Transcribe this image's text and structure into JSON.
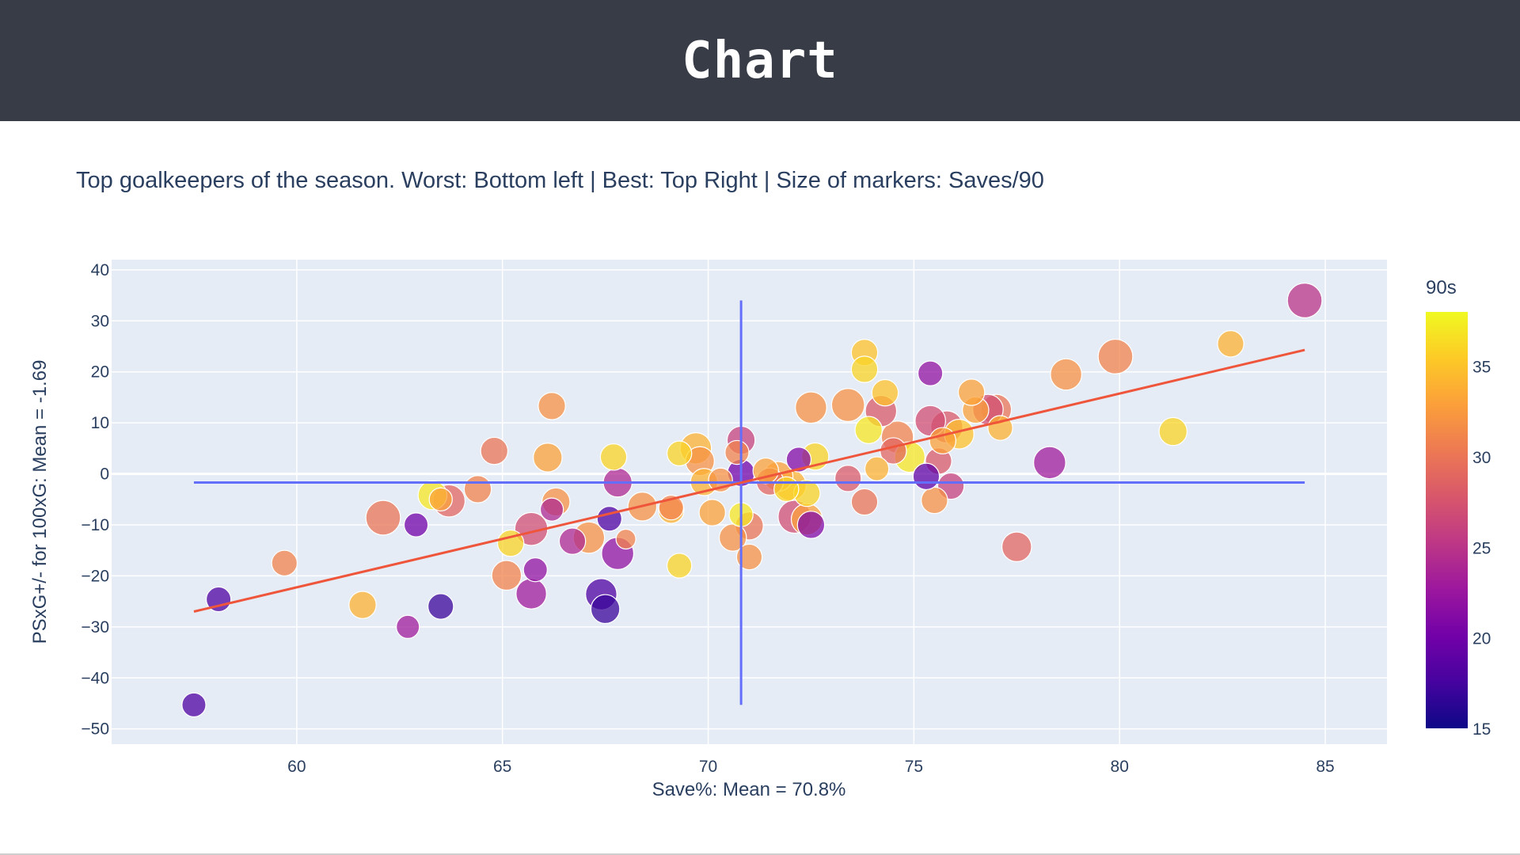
{
  "header": {
    "title": "Chart"
  },
  "chart_data": {
    "type": "scatter",
    "title": "Top goalkeepers of the season. Worst: Bottom left | Best: Top Right | Size of markers: Saves/90",
    "xlabel": "Save%: Mean = 70.8%",
    "ylabel": "PSxG+/- for 100xG: Mean = -1.69",
    "xlim": [
      55.5,
      86.5
    ],
    "ylim": [
      -53,
      42
    ],
    "xticks": [
      60,
      65,
      70,
      75,
      80,
      85
    ],
    "yticks": [
      40,
      30,
      20,
      10,
      0,
      -10,
      -20,
      -30,
      -40,
      -50
    ],
    "grid": true,
    "colorbar": {
      "title": "90s",
      "range": [
        15,
        38
      ],
      "ticks": [
        15,
        20,
        25,
        30,
        35
      ],
      "colorscale": [
        "#0d0887",
        "#46039f",
        "#7201a8",
        "#9c179e",
        "#bd3786",
        "#d8576b",
        "#ed7953",
        "#fb9f3a",
        "#fdca26",
        "#f0f921"
      ]
    },
    "size_encoding": "Saves/90",
    "mean_x": 70.8,
    "mean_y": -1.69,
    "trendline": {
      "x": [
        57.5,
        84.5
      ],
      "y": [
        -27,
        24.3
      ],
      "color": "#ef553b"
    },
    "mean_line_color": "#636efa",
    "points": [
      {
        "x": 84.5,
        "y": 34,
        "c": 25,
        "s": 4.2
      },
      {
        "x": 82.7,
        "y": 25.5,
        "c": 34,
        "s": 3.2
      },
      {
        "x": 81.3,
        "y": 8.3,
        "c": 36,
        "s": 3.4
      },
      {
        "x": 79.9,
        "y": 23,
        "c": 31,
        "s": 4.2
      },
      {
        "x": 78.7,
        "y": 19.5,
        "c": 32,
        "s": 3.8
      },
      {
        "x": 78.3,
        "y": 2.2,
        "c": 23,
        "s": 3.9
      },
      {
        "x": 77.5,
        "y": -14.3,
        "c": 29,
        "s": 3.6
      },
      {
        "x": 77.1,
        "y": 9,
        "c": 34,
        "s": 3.0
      },
      {
        "x": 77,
        "y": 12.6,
        "c": 30,
        "s": 3.7
      },
      {
        "x": 76.8,
        "y": 12.6,
        "c": 27,
        "s": 3.7
      },
      {
        "x": 76.5,
        "y": 12.5,
        "c": 33,
        "s": 3.2
      },
      {
        "x": 76.4,
        "y": 16,
        "c": 33,
        "s": 3.2
      },
      {
        "x": 76.1,
        "y": 7.8,
        "c": 35,
        "s": 3.6
      },
      {
        "x": 75.8,
        "y": 9.2,
        "c": 28,
        "s": 3.9
      },
      {
        "x": 75.9,
        "y": -2.4,
        "c": 26,
        "s": 3.2
      },
      {
        "x": 75.6,
        "y": 2.5,
        "c": 28,
        "s": 3.2
      },
      {
        "x": 75.7,
        "y": 6.5,
        "c": 33,
        "s": 3.2
      },
      {
        "x": 75.5,
        "y": -5.2,
        "c": 32,
        "s": 3.2
      },
      {
        "x": 75.4,
        "y": 19.7,
        "c": 22,
        "s": 3.0
      },
      {
        "x": 75.4,
        "y": 10.4,
        "c": 27,
        "s": 3.7
      },
      {
        "x": 75.3,
        "y": -0.5,
        "c": 19,
        "s": 3.2
      },
      {
        "x": 74.9,
        "y": 3.3,
        "c": 37,
        "s": 3.7
      },
      {
        "x": 74.6,
        "y": 7.2,
        "c": 31,
        "s": 3.9
      },
      {
        "x": 74.5,
        "y": 4.5,
        "c": 29,
        "s": 3.2
      },
      {
        "x": 74.3,
        "y": 15.9,
        "c": 35,
        "s": 3.2
      },
      {
        "x": 74.2,
        "y": 12.3,
        "c": 28,
        "s": 3.8
      },
      {
        "x": 74.1,
        "y": 1,
        "c": 34,
        "s": 2.9
      },
      {
        "x": 73.9,
        "y": 8.6,
        "c": 37,
        "s": 3.3
      },
      {
        "x": 73.8,
        "y": 23.8,
        "c": 35,
        "s": 3.2
      },
      {
        "x": 73.8,
        "y": 20.5,
        "c": 36,
        "s": 3.2
      },
      {
        "x": 73.8,
        "y": -5.5,
        "c": 30,
        "s": 3.2
      },
      {
        "x": 73.4,
        "y": 13.5,
        "c": 32,
        "s": 4.0
      },
      {
        "x": 73.4,
        "y": -0.9,
        "c": 28,
        "s": 3.2
      },
      {
        "x": 72.6,
        "y": 3.4,
        "c": 36,
        "s": 3.3
      },
      {
        "x": 72.5,
        "y": 13,
        "c": 32,
        "s": 3.8
      },
      {
        "x": 72.4,
        "y": -8.9,
        "c": 33,
        "s": 3.8
      },
      {
        "x": 72.4,
        "y": -3.8,
        "c": 36,
        "s": 3.2
      },
      {
        "x": 72.5,
        "y": -10,
        "c": 21,
        "s": 3.3
      },
      {
        "x": 72.2,
        "y": 2.8,
        "c": 21,
        "s": 3.0
      },
      {
        "x": 72.1,
        "y": -8.4,
        "c": 27,
        "s": 4.0
      },
      {
        "x": 72,
        "y": -2.2,
        "c": 34,
        "s": 3.8
      },
      {
        "x": 71.9,
        "y": -3,
        "c": 36,
        "s": 3.0
      },
      {
        "x": 71.7,
        "y": -0.5,
        "c": 33,
        "s": 3.6
      },
      {
        "x": 71.4,
        "y": 0.6,
        "c": 33,
        "s": 3.1
      },
      {
        "x": 71.5,
        "y": -1.5,
        "c": 29,
        "s": 3.3
      },
      {
        "x": 71,
        "y": -16.3,
        "c": 32,
        "s": 3.1
      },
      {
        "x": 71,
        "y": -10.2,
        "c": 30,
        "s": 3.4
      },
      {
        "x": 70.8,
        "y": 6.6,
        "c": 26,
        "s": 3.4
      },
      {
        "x": 70.8,
        "y": -8,
        "c": 37,
        "s": 2.9
      },
      {
        "x": 70.8,
        "y": 0.2,
        "c": 20,
        "s": 3.3
      },
      {
        "x": 70.6,
        "y": -12.5,
        "c": 32,
        "s": 3.3
      },
      {
        "x": 70.7,
        "y": 4.2,
        "c": 31,
        "s": 2.9
      },
      {
        "x": 70.3,
        "y": -1.2,
        "c": 32,
        "s": 2.9
      },
      {
        "x": 70.1,
        "y": -7.6,
        "c": 33,
        "s": 3.2
      },
      {
        "x": 69.9,
        "y": -1.6,
        "c": 34,
        "s": 3.3
      },
      {
        "x": 69.8,
        "y": 2.5,
        "c": 32,
        "s": 3.5
      },
      {
        "x": 69.7,
        "y": 5,
        "c": 34,
        "s": 3.8
      },
      {
        "x": 69.3,
        "y": 4,
        "c": 36,
        "s": 3.0
      },
      {
        "x": 69.3,
        "y": -18,
        "c": 36,
        "s": 3.0
      },
      {
        "x": 69.1,
        "y": -7.2,
        "c": 34,
        "s": 3.1
      },
      {
        "x": 69.1,
        "y": -6.6,
        "c": 31,
        "s": 3.0
      },
      {
        "x": 68.4,
        "y": -6.4,
        "c": 32,
        "s": 3.5
      },
      {
        "x": 68,
        "y": -12.8,
        "c": 31,
        "s": 2.4
      },
      {
        "x": 67.8,
        "y": -15.6,
        "c": 22,
        "s": 3.9
      },
      {
        "x": 67.8,
        "y": -1.7,
        "c": 24,
        "s": 3.5
      },
      {
        "x": 67.7,
        "y": 3.3,
        "c": 36,
        "s": 3.2
      },
      {
        "x": 67.6,
        "y": -8.8,
        "c": 18,
        "s": 3.0
      },
      {
        "x": 67.5,
        "y": -26.5,
        "c": 17,
        "s": 3.5
      },
      {
        "x": 67.4,
        "y": -23.6,
        "c": 18,
        "s": 3.8
      },
      {
        "x": 67.1,
        "y": -12.5,
        "c": 32,
        "s": 3.8
      },
      {
        "x": 66.7,
        "y": -13.2,
        "c": 24,
        "s": 3.2
      },
      {
        "x": 66.3,
        "y": -5.5,
        "c": 32,
        "s": 3.4
      },
      {
        "x": 66.2,
        "y": 13.3,
        "c": 32,
        "s": 3.3
      },
      {
        "x": 66.2,
        "y": -7,
        "c": 24,
        "s": 2.8
      },
      {
        "x": 66.1,
        "y": 3.2,
        "c": 33,
        "s": 3.5
      },
      {
        "x": 65.8,
        "y": -18.8,
        "c": 22,
        "s": 2.9
      },
      {
        "x": 65.7,
        "y": -23.5,
        "c": 23,
        "s": 3.7
      },
      {
        "x": 65.7,
        "y": -10.8,
        "c": 27,
        "s": 4.0
      },
      {
        "x": 65.2,
        "y": -13.6,
        "c": 36,
        "s": 3.2
      },
      {
        "x": 65.1,
        "y": -19.9,
        "c": 31,
        "s": 3.6
      },
      {
        "x": 64.8,
        "y": 4.5,
        "c": 30,
        "s": 3.3
      },
      {
        "x": 64.4,
        "y": -3,
        "c": 31,
        "s": 3.3
      },
      {
        "x": 63.7,
        "y": -5.3,
        "c": 29,
        "s": 3.9
      },
      {
        "x": 63.5,
        "y": -5,
        "c": 33,
        "s": 2.8
      },
      {
        "x": 63.5,
        "y": -26,
        "c": 17,
        "s": 3.1
      },
      {
        "x": 63.3,
        "y": -4.2,
        "c": 37,
        "s": 3.5
      },
      {
        "x": 62.9,
        "y": -10,
        "c": 20,
        "s": 2.9
      },
      {
        "x": 62.7,
        "y": -30,
        "c": 23,
        "s": 2.8
      },
      {
        "x": 62.1,
        "y": -8.6,
        "c": 30,
        "s": 4.2
      },
      {
        "x": 61.6,
        "y": -25.7,
        "c": 34,
        "s": 3.3
      },
      {
        "x": 59.7,
        "y": -17.5,
        "c": 31,
        "s": 3.1
      },
      {
        "x": 58.1,
        "y": -24.6,
        "c": 18,
        "s": 3.0
      },
      {
        "x": 57.5,
        "y": -45.3,
        "c": 18,
        "s": 2.9
      }
    ]
  }
}
